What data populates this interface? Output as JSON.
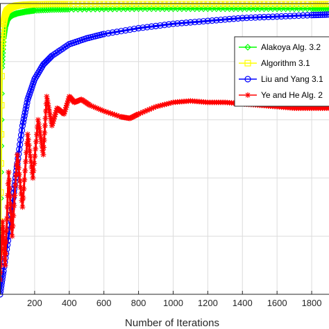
{
  "chart_data": {
    "type": "line",
    "xlabel": "Number of Iterations",
    "xlim": [
      0,
      1900
    ],
    "ylim": [
      0,
      1
    ],
    "x_ticks": [
      200,
      400,
      600,
      800,
      1000,
      1200,
      1400,
      1600,
      1800
    ],
    "x_tick_labels": [
      "200",
      "400",
      "600",
      "800",
      "1000",
      "1200",
      "1400",
      "1600",
      "1800"
    ],
    "grid": true,
    "legend_position": "top-right",
    "series": [
      {
        "name": "Alakoya Alg. 3.2",
        "color": "#00ff00",
        "marker": "diamond",
        "x": [
          0,
          10,
          20,
          30,
          40,
          60,
          80,
          100,
          150,
          200,
          300,
          400,
          600,
          800,
          1000,
          1200,
          1400,
          1600,
          1800,
          1900
        ],
        "y": [
          0.06,
          0.78,
          0.88,
          0.92,
          0.94,
          0.955,
          0.962,
          0.966,
          0.972,
          0.976,
          0.979,
          0.98,
          0.981,
          0.982,
          0.982,
          0.982,
          0.982,
          0.982,
          0.982,
          0.982
        ]
      },
      {
        "name": "Algorithm 3.1",
        "color": "#ffff00",
        "marker": "square",
        "x": [
          0,
          10,
          20,
          30,
          40,
          60,
          80,
          100,
          150,
          200,
          300,
          400,
          600,
          800,
          1000,
          1200,
          1400,
          1600,
          1800,
          1900
        ],
        "y": [
          0.05,
          0.85,
          0.93,
          0.96,
          0.975,
          0.985,
          0.99,
          0.993,
          0.996,
          0.997,
          0.998,
          0.998,
          0.998,
          0.998,
          0.998,
          0.998,
          0.998,
          0.998,
          0.998,
          0.998
        ]
      },
      {
        "name": "Liu and Yang 3.1",
        "color": "#0000ff",
        "marker": "circle",
        "x": [
          0,
          20,
          50,
          80,
          100,
          130,
          160,
          200,
          250,
          300,
          400,
          500,
          600,
          800,
          1000,
          1200,
          1400,
          1600,
          1800,
          1900
        ],
        "y": [
          0.0,
          0.08,
          0.2,
          0.35,
          0.45,
          0.58,
          0.67,
          0.74,
          0.79,
          0.82,
          0.86,
          0.88,
          0.895,
          0.915,
          0.93,
          0.94,
          0.95,
          0.955,
          0.96,
          0.962
        ]
      },
      {
        "name": "Ye and He Alg. 2",
        "color": "#ff0000",
        "marker": "asterisk",
        "x": [
          0,
          15,
          30,
          50,
          70,
          100,
          130,
          160,
          190,
          220,
          250,
          270,
          300,
          330,
          370,
          400,
          430,
          470,
          520,
          600,
          700,
          750,
          800,
          900,
          1000,
          1100,
          1200,
          1300,
          1400,
          1500,
          1600,
          1700,
          1800,
          1900
        ],
        "y": [
          0.05,
          0.25,
          0.1,
          0.42,
          0.2,
          0.48,
          0.3,
          0.55,
          0.4,
          0.6,
          0.48,
          0.68,
          0.58,
          0.64,
          0.62,
          0.68,
          0.66,
          0.67,
          0.65,
          0.63,
          0.61,
          0.605,
          0.62,
          0.645,
          0.66,
          0.665,
          0.66,
          0.66,
          0.655,
          0.65,
          0.645,
          0.64,
          0.64,
          0.64
        ]
      }
    ]
  }
}
